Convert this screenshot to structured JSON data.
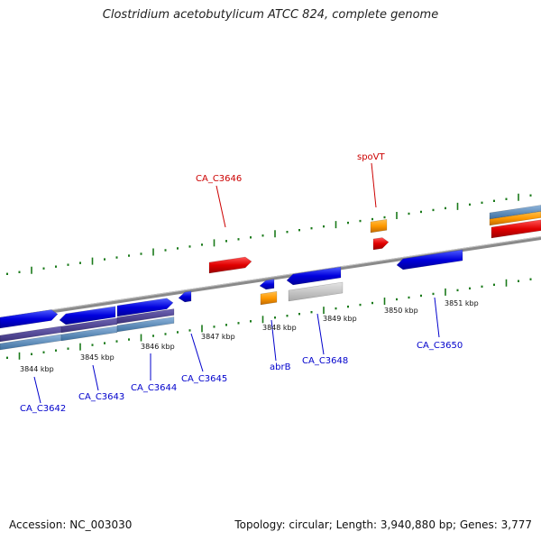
{
  "title": "Clostridium acetobutylicum ATCC 824, complete genome",
  "accession": "Accession: NC_003030",
  "summary": "Topology: circular; Length: 3,940,880 bp; Genes: 3,777",
  "colors": {
    "forward_gene": "#e00000",
    "reverse_gene": "#0000dd",
    "forward_label": "#cc0000",
    "reverse_label": "#0000cc",
    "orange_feature": "#ff9900",
    "gray_feature": "#c8c8c8",
    "tick": "#1a7a1a",
    "backbone": "#8a8a8a"
  },
  "scale_labels": [
    "3844 kbp",
    "3845 kbp",
    "3846 kbp",
    "3847 kbp",
    "3848 kbp",
    "3849 kbp",
    "3850 kbp",
    "3851 kbp"
  ],
  "genes_top": [
    "CA_C3646",
    "spoVT"
  ],
  "genes_bottom": [
    "CA_C3642",
    "CA_C3643",
    "CA_C3644",
    "CA_C3645",
    "abrB",
    "CA_C3648",
    "CA_C3650"
  ]
}
